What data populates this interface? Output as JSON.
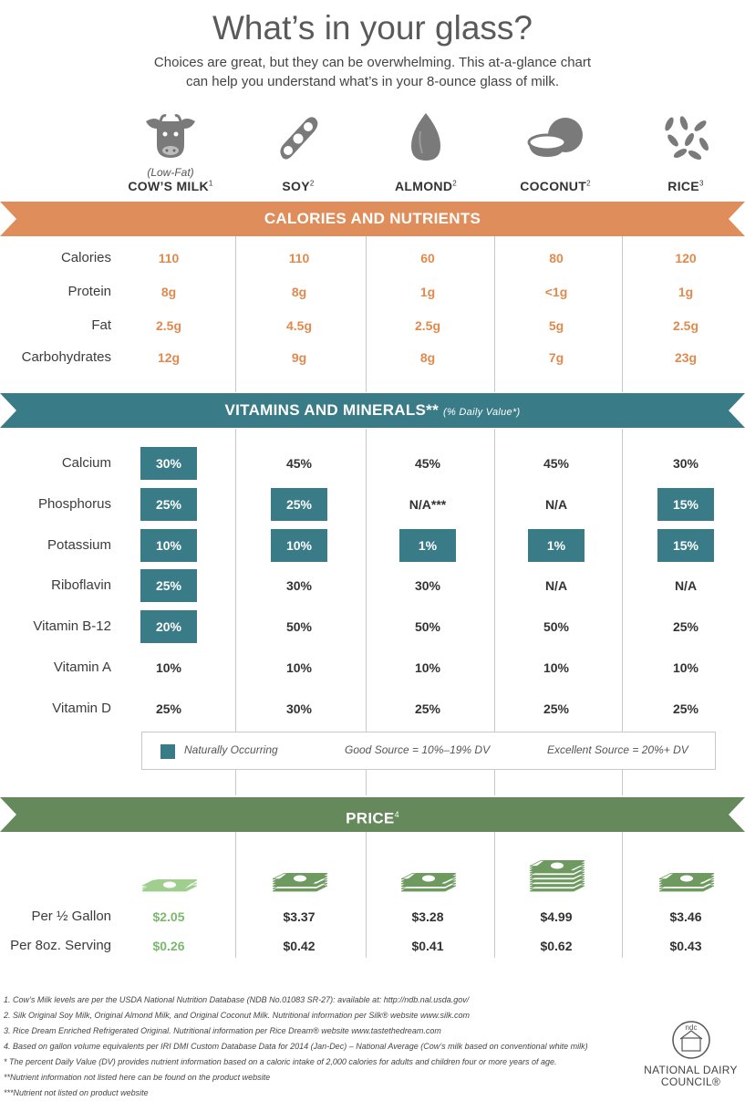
{
  "title": "What’s in your glass?",
  "intro": [
    "Choices are great, but they can be overwhelming. This at-a-glance chart",
    "can help you understand what’s in your 8-ounce glass of milk."
  ],
  "columns": [
    {
      "icon": "cow-icon",
      "sub": "(Low-Fat)",
      "name": "COW’S MILK",
      "sup": "1"
    },
    {
      "icon": "soybean-icon",
      "sub": "",
      "name": "SOY",
      "sup": "2"
    },
    {
      "icon": "almond-icon",
      "sub": "",
      "name": "ALMOND",
      "sup": "2"
    },
    {
      "icon": "coconut-icon",
      "sub": "",
      "name": "COCONUT",
      "sup": "2"
    },
    {
      "icon": "rice-icon",
      "sub": "",
      "name": "RICE",
      "sup": "3"
    }
  ],
  "sections": {
    "nutrients": {
      "title": "CALORIES AND NUTRIENTS",
      "color": "#df8e5b"
    },
    "vitamins": {
      "title": "VITAMINS AND MINERALS**",
      "note": "(% Daily Value*)",
      "color": "#3a7b88"
    },
    "price": {
      "title": "PRICE",
      "sup": "4",
      "color": "#65895a"
    }
  },
  "nutrients": [
    {
      "label": "Calories",
      "values": [
        "110",
        "110",
        "60",
        "80",
        "120"
      ]
    },
    {
      "label": "Protein",
      "values": [
        "8g",
        "8g",
        "1g",
        "<1g",
        "1g"
      ]
    },
    {
      "label": "Fat",
      "values": [
        "2.5g",
        "4.5g",
        "2.5g",
        "5g",
        "2.5g"
      ]
    },
    {
      "label": "Carbohydrates",
      "values": [
        "12g",
        "9g",
        "8g",
        "7g",
        "23g"
      ]
    }
  ],
  "vitamins": [
    {
      "label": "Calcium",
      "values": [
        "30%",
        "45%",
        "45%",
        "45%",
        "30%"
      ],
      "natural": [
        true,
        false,
        false,
        false,
        false
      ]
    },
    {
      "label": "Phosphorus",
      "values": [
        "25%",
        "25%",
        "N/A***",
        "N/A",
        "15%"
      ],
      "natural": [
        true,
        true,
        false,
        false,
        true
      ]
    },
    {
      "label": "Potassium",
      "values": [
        "10%",
        "10%",
        "1%",
        "1%",
        "15%"
      ],
      "natural": [
        true,
        true,
        true,
        true,
        true
      ]
    },
    {
      "label": "Riboflavin",
      "values": [
        "25%",
        "30%",
        "30%",
        "N/A",
        "N/A"
      ],
      "natural": [
        true,
        false,
        false,
        false,
        false
      ]
    },
    {
      "label": "Vitamin B-12",
      "values": [
        "20%",
        "50%",
        "50%",
        "50%",
        "25%"
      ],
      "natural": [
        true,
        false,
        false,
        false,
        false
      ]
    },
    {
      "label": "Vitamin A",
      "values": [
        "10%",
        "10%",
        "10%",
        "10%",
        "10%"
      ],
      "natural": [
        false,
        false,
        false,
        false,
        false
      ]
    },
    {
      "label": "Vitamin D",
      "values": [
        "25%",
        "30%",
        "25%",
        "25%",
        "25%"
      ],
      "natural": [
        false,
        false,
        false,
        false,
        false
      ]
    }
  ],
  "legend": {
    "naturally": "Naturally Occurring",
    "good": "Good Source = 10%–19% DV",
    "excellent": "Excellent Source = 20%+ DV"
  },
  "price_stacks": [
    1,
    2,
    2,
    4,
    2
  ],
  "price_rows": [
    {
      "label": "Per ½ Gallon",
      "values": [
        "$2.05",
        "$3.37",
        "$3.28",
        "$4.99",
        "$3.46"
      ]
    },
    {
      "label": "Per 8oz. Serving",
      "values": [
        "$0.26",
        "$0.42",
        "$0.41",
        "$0.62",
        "$0.43"
      ]
    }
  ],
  "footnotes": [
    "1. Cow’s Milk levels are per the USDA National Nutrition Database (NDB No.01083 SR-27): available at: http://ndb.nal.usda.gov/",
    "2. Silk Original Soy Milk, Original Almond Milk, and Original Coconut Milk. Nutritional information per Silk® website www.silk.com",
    "3. Rice Dream Enriched Refrigerated Original. Nutritional information per Rice Dream® website www.tastethedream.com",
    "4. Based on gallon volume equivalents per IRI DMI Custom Database Data for 2014 (Jan-Dec) – National Average  (Cow’s milk based on conventional white milk)",
    "* The percent Daily Value (DV) provides nutrient information based on a caloric intake of 2,000 calories for adults and children four or more years of age.",
    "**Nutrient information not listed here can be found on the product website",
    "***Nutrient not listed on product website"
  ],
  "logo": {
    "mark": "ndc",
    "line1": "NATIONAL DAIRY",
    "line2": "COUNCIL®"
  },
  "colors": {
    "orange": "#e08a4e",
    "teal": "#3a7b88",
    "green": "#65895a",
    "light_green": "#7cb86e"
  }
}
